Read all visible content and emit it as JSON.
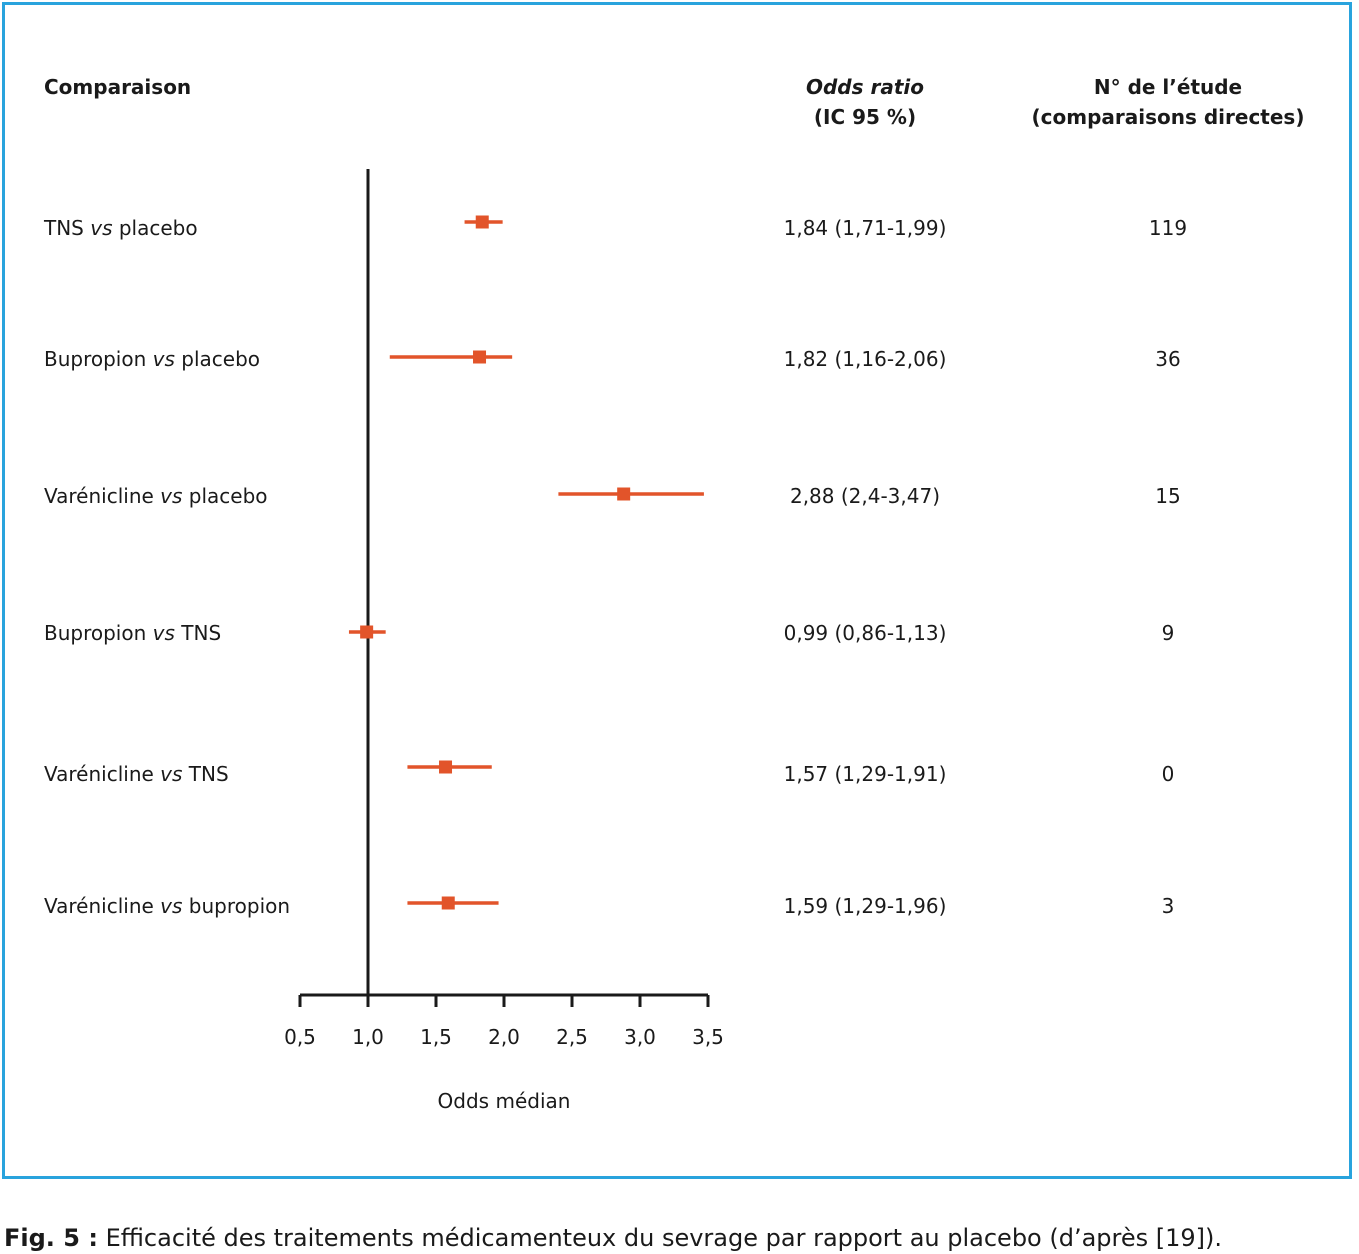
{
  "colors": {
    "frame": "#29a3dd",
    "marker": "#e2542a",
    "axis": "#1a1a1a"
  },
  "headers": {
    "comparison": "Comparaison",
    "or_line1": "Odds ratio",
    "or_line2": "(IC 95 %)",
    "n_line1": "N° de l’étude",
    "n_line2": "(comparaisons directes)"
  },
  "rows": [
    {
      "a": "TNS",
      "vs": "vs",
      "b": "placebo",
      "or_text": "1,84 (1,71-1,99)",
      "n": "119"
    },
    {
      "a": "Bupropion",
      "vs": "vs",
      "b": "placebo",
      "or_text": "1,82 (1,16-2,06)",
      "n": "36"
    },
    {
      "a": "Varénicline",
      "vs": "vs",
      "b": "placebo",
      "or_text": "2,88 (2,4-3,47)",
      "n": "15"
    },
    {
      "a": "Bupropion",
      "vs": "vs",
      "b": "TNS",
      "or_text": "0,99 (0,86-1,13)",
      "n": "9"
    },
    {
      "a": "Varénicline",
      "vs": "vs",
      "b": "TNS",
      "or_text": "1,57 (1,29-1,91)",
      "n": "0"
    },
    {
      "a": "Varénicline",
      "vs": "vs",
      "b": "bupropion",
      "or_text": "1,59 (1,29-1,96)",
      "n": "3"
    }
  ],
  "chart_data": {
    "type": "forest",
    "xlabel": "Odds médian",
    "xlim": [
      0.5,
      3.5
    ],
    "xticks": [
      0.5,
      1.0,
      1.5,
      2.0,
      2.5,
      3.0,
      3.5
    ],
    "xtick_labels": [
      "0,5",
      "1,0",
      "1,5",
      "2,0",
      "2,5",
      "3,0",
      "3,5"
    ],
    "reference_line": 1.0,
    "series": [
      {
        "label": "TNS vs placebo",
        "estimate": 1.84,
        "lower": 1.71,
        "upper": 1.99
      },
      {
        "label": "Bupropion vs placebo",
        "estimate": 1.82,
        "lower": 1.16,
        "upper": 2.06
      },
      {
        "label": "Varénicline vs placebo",
        "estimate": 2.88,
        "lower": 2.4,
        "upper": 3.47
      },
      {
        "label": "Bupropion vs TNS",
        "estimate": 0.99,
        "lower": 0.86,
        "upper": 1.13
      },
      {
        "label": "Varénicline vs TNS",
        "estimate": 1.57,
        "lower": 1.29,
        "upper": 1.91
      },
      {
        "label": "Varénicline vs bupropion",
        "estimate": 1.59,
        "lower": 1.29,
        "upper": 1.96
      }
    ]
  },
  "caption": {
    "prefix": "Fig. 5 :",
    "text": " Efficacité des traitements médicamenteux du sevrage par rapport au placebo (d’après [19])."
  }
}
